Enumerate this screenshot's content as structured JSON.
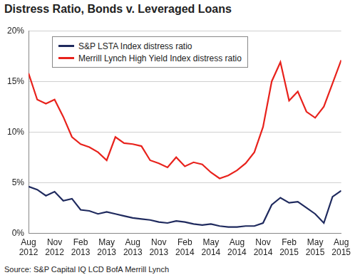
{
  "chart_data": {
    "type": "line",
    "title": "Distress Ratio, Bonds v. Leveraged Loans",
    "source": "Source: S&P Capital IQ LCD BofA Merrill Lynch",
    "categories": [
      "Aug 2012",
      null,
      null,
      "Nov 2012",
      null,
      null,
      "Feb 2013",
      null,
      null,
      "May 2013",
      null,
      null,
      "Aug 2013",
      null,
      null,
      "Nov 2013",
      null,
      null,
      "Feb 2014",
      null,
      null,
      "May 2014",
      null,
      null,
      "Aug 2014",
      null,
      null,
      "Nov 2014",
      null,
      null,
      "Feb 2015",
      null,
      null,
      "May 2015",
      null,
      null,
      "Aug 2015"
    ],
    "series": [
      {
        "name": "S&P LSTA Index distress ratio",
        "color": "#1f2a5e",
        "values": [
          4.6,
          4.3,
          3.7,
          4.1,
          3.2,
          3.4,
          2.3,
          2.2,
          1.9,
          2.1,
          1.9,
          1.7,
          1.5,
          1.4,
          1.3,
          1.1,
          1.0,
          1.2,
          1.1,
          0.9,
          0.8,
          0.9,
          0.7,
          0.6,
          0.6,
          0.7,
          0.7,
          1.0,
          2.8,
          3.5,
          3.0,
          3.1,
          2.5,
          1.9,
          1.0,
          3.6,
          4.2
        ]
      },
      {
        "name": "Merrill Lynch High Yield Index distress ratio",
        "color": "#e8221c",
        "values": [
          15.8,
          13.2,
          12.8,
          13.2,
          11.5,
          9.5,
          8.8,
          8.5,
          8.0,
          7.2,
          9.5,
          8.9,
          8.8,
          8.6,
          7.2,
          6.9,
          6.5,
          7.5,
          6.6,
          7.0,
          6.8,
          6.0,
          5.4,
          5.7,
          6.2,
          6.9,
          8.0,
          10.5,
          15.0,
          16.9,
          13.1,
          14.0,
          12.0,
          11.4,
          12.5,
          14.8,
          17.1
        ]
      }
    ],
    "ylim": [
      0,
      20
    ],
    "yticks": [
      {
        "value": 0,
        "label": "0%"
      },
      {
        "value": 5,
        "label": "5%"
      },
      {
        "value": 10,
        "label": "10%"
      },
      {
        "value": 15,
        "label": "15%"
      },
      {
        "value": 20,
        "label": "20%"
      }
    ],
    "grid": true,
    "legend": "upper left"
  }
}
